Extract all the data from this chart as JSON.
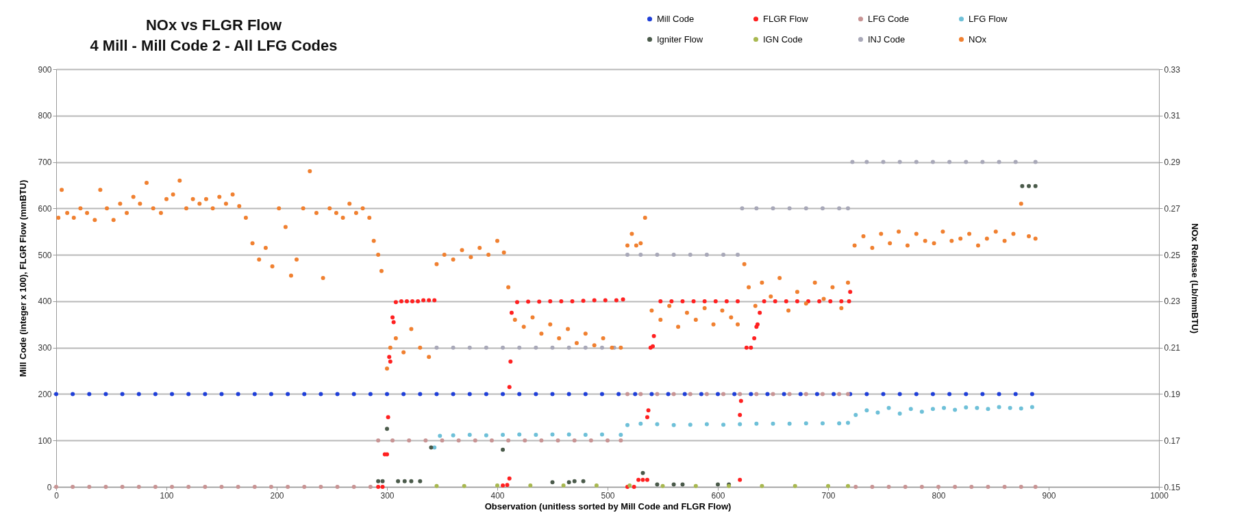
{
  "chart_data": {
    "type": "scatter",
    "title": "NOx vs FLGR Flow",
    "subtitle": "4 Mill - Mill Code 2 - All LFG Codes",
    "xlabel": "Observation (unitless sorted by Mill Code and FLGR Flow)",
    "ylabel": "Mill Code (integer x 100), FLGR Flow (mmBTU)",
    "y2label": "NOx Release (Lb/mmBTU)",
    "xlim": [
      0,
      1000
    ],
    "xticks": [
      0,
      100,
      200,
      300,
      400,
      500,
      600,
      700,
      800,
      900,
      1000
    ],
    "ylim": [
      0,
      900
    ],
    "yticks": [
      0,
      100,
      200,
      300,
      400,
      500,
      600,
      700,
      800,
      900
    ],
    "y2lim": [
      0.15,
      0.33
    ],
    "y2ticks": [
      0.15,
      0.17,
      0.19,
      0.21,
      0.23,
      0.25,
      0.27,
      0.29,
      0.31,
      0.33
    ],
    "grid": "y",
    "legend": "top",
    "marker": "circle",
    "series": [
      {
        "name": "Mill Code",
        "color": "#1f3fd8",
        "x": [
          0,
          15,
          30,
          45,
          60,
          75,
          90,
          105,
          120,
          135,
          150,
          165,
          180,
          195,
          210,
          225,
          240,
          255,
          270,
          285,
          300,
          315,
          330,
          345,
          360,
          375,
          390,
          405,
          420,
          435,
          450,
          465,
          480,
          495,
          510,
          525,
          540,
          555,
          570,
          585,
          600,
          615,
          630,
          645,
          660,
          675,
          690,
          705,
          720,
          735,
          750,
          765,
          780,
          795,
          810,
          825,
          840,
          855,
          870,
          885
        ],
        "values": [
          200,
          200,
          200,
          200,
          200,
          200,
          200,
          200,
          200,
          200,
          200,
          200,
          200,
          200,
          200,
          200,
          200,
          200,
          200,
          200,
          200,
          200,
          200,
          200,
          200,
          200,
          200,
          200,
          200,
          200,
          200,
          200,
          200,
          200,
          200,
          200,
          200,
          200,
          200,
          200,
          200,
          200,
          200,
          200,
          200,
          200,
          200,
          200,
          200,
          200,
          200,
          200,
          200,
          200,
          200,
          200,
          200,
          200,
          200,
          200
        ]
      },
      {
        "name": "FLGR Flow",
        "color": "#ff2020",
        "x": [
          292,
          296,
          298,
          300,
          301,
          302,
          303,
          305,
          306,
          308,
          313,
          318,
          323,
          328,
          333,
          338,
          343,
          405,
          409,
          411,
          411,
          412,
          413,
          418,
          428,
          438,
          448,
          458,
          468,
          478,
          488,
          498,
          508,
          514,
          518,
          524,
          528,
          532,
          536,
          536,
          537,
          539,
          541,
          542,
          548,
          558,
          568,
          578,
          588,
          598,
          608,
          618,
          620,
          620,
          621,
          626,
          630,
          633,
          635,
          636,
          638,
          642,
          652,
          662,
          672,
          682,
          692,
          702,
          712,
          719,
          720
        ],
        "values": [
          0,
          0,
          70,
          70,
          150,
          280,
          270,
          365,
          355,
          398,
          400,
          400,
          400,
          400,
          402,
          402,
          402,
          3,
          4,
          18,
          215,
          270,
          375,
          398,
          399,
          399,
          400,
          400,
          400,
          401,
          402,
          402,
          402,
          404,
          0,
          0,
          15,
          15,
          15,
          150,
          165,
          300,
          303,
          325,
          400,
          400,
          400,
          400,
          400,
          400,
          400,
          400,
          15,
          155,
          185,
          300,
          300,
          320,
          345,
          350,
          375,
          400,
          400,
          400,
          400,
          400,
          400,
          400,
          400,
          400,
          420
        ]
      },
      {
        "name": "LFG Code",
        "color": "#c89494",
        "x": [
          0,
          15,
          30,
          45,
          60,
          75,
          90,
          105,
          120,
          135,
          150,
          165,
          180,
          195,
          210,
          225,
          240,
          255,
          270,
          285,
          292,
          305,
          320,
          335,
          350,
          365,
          380,
          395,
          410,
          425,
          440,
          455,
          470,
          485,
          500,
          512,
          518,
          530,
          545,
          560,
          575,
          590,
          605,
          620,
          635,
          650,
          665,
          680,
          695,
          710,
          718,
          725,
          740,
          755,
          770,
          785,
          800,
          815,
          830,
          845,
          860,
          875,
          888
        ],
        "values": [
          0,
          0,
          0,
          0,
          0,
          0,
          0,
          0,
          0,
          0,
          0,
          0,
          0,
          0,
          0,
          0,
          0,
          0,
          0,
          0,
          100,
          100,
          100,
          100,
          100,
          100,
          100,
          100,
          100,
          100,
          100,
          100,
          100,
          100,
          100,
          100,
          200,
          200,
          200,
          200,
          200,
          200,
          200,
          200,
          200,
          200,
          200,
          200,
          200,
          200,
          200,
          0,
          0,
          0,
          0,
          0,
          0,
          0,
          0,
          0,
          0,
          0,
          0
        ]
      },
      {
        "name": "LFG Flow",
        "color": "#6ec0d8",
        "x": [
          343,
          348,
          360,
          375,
          390,
          405,
          420,
          435,
          450,
          465,
          480,
          495,
          512,
          518,
          530,
          545,
          560,
          575,
          590,
          605,
          620,
          635,
          650,
          665,
          680,
          695,
          710,
          718,
          725,
          735,
          745,
          755,
          765,
          775,
          785,
          795,
          805,
          815,
          825,
          835,
          845,
          855,
          865,
          875,
          885
        ],
        "values": [
          85,
          110,
          111,
          112,
          111,
          112,
          113,
          112,
          113,
          113,
          112,
          113,
          112,
          133,
          136,
          135,
          133,
          134,
          135,
          134,
          135,
          136,
          136,
          136,
          137,
          137,
          137,
          138,
          155,
          165,
          160,
          170,
          158,
          168,
          162,
          168,
          170,
          166,
          171,
          170,
          168,
          172,
          170,
          169,
          172
        ]
      },
      {
        "name": "Igniter Flow",
        "color": "#4a5a4a",
        "x": [
          292,
          296,
          300,
          310,
          316,
          322,
          330,
          340,
          405,
          450,
          465,
          470,
          478,
          532,
          545,
          560,
          568,
          600,
          610,
          876,
          882,
          888
        ],
        "values": [
          12,
          12,
          125,
          12,
          12,
          12,
          12,
          85,
          80,
          10,
          10,
          12,
          12,
          30,
          5,
          5,
          5,
          5,
          5,
          648,
          648,
          648
        ]
      },
      {
        "name": "IGN Code",
        "color": "#a8b850",
        "x": [
          345,
          370,
          400,
          430,
          460,
          490,
          520,
          550,
          580,
          610,
          640,
          670,
          700,
          718
        ],
        "values": [
          2,
          2,
          3,
          3,
          3,
          3,
          3,
          2,
          2,
          2,
          2,
          2,
          2,
          2
        ]
      },
      {
        "name": "INJ Code",
        "color": "#a8a8b8",
        "x": [
          345,
          360,
          375,
          390,
          405,
          420,
          435,
          450,
          465,
          480,
          495,
          506,
          518,
          530,
          545,
          560,
          575,
          590,
          605,
          618,
          622,
          635,
          650,
          665,
          680,
          695,
          710,
          718,
          722,
          735,
          750,
          765,
          780,
          795,
          810,
          825,
          840,
          855,
          870,
          888
        ],
        "values": [
          300,
          300,
          300,
          300,
          300,
          300,
          300,
          300,
          300,
          300,
          300,
          300,
          500,
          500,
          500,
          500,
          500,
          500,
          500,
          500,
          600,
          600,
          600,
          600,
          600,
          600,
          600,
          600,
          700,
          700,
          700,
          700,
          700,
          700,
          700,
          700,
          700,
          700,
          700,
          700
        ]
      },
      {
        "name": "NOx",
        "color": "#f08030",
        "axis": "y2",
        "x": [
          2,
          5,
          10,
          16,
          22,
          28,
          35,
          40,
          46,
          52,
          58,
          64,
          70,
          76,
          82,
          88,
          95,
          100,
          106,
          112,
          118,
          124,
          130,
          136,
          142,
          148,
          154,
          160,
          166,
          172,
          178,
          184,
          190,
          196,
          202,
          208,
          213,
          218,
          224,
          230,
          236,
          242,
          248,
          254,
          260,
          266,
          272,
          278,
          284,
          288,
          292,
          295,
          300,
          303,
          308,
          315,
          322,
          330,
          338,
          345,
          352,
          360,
          368,
          376,
          384,
          392,
          400,
          406,
          410,
          416,
          424,
          432,
          440,
          448,
          456,
          464,
          472,
          480,
          488,
          496,
          504,
          512,
          518,
          522,
          526,
          530,
          534,
          540,
          548,
          556,
          564,
          572,
          580,
          588,
          596,
          604,
          612,
          618,
          624,
          628,
          634,
          640,
          648,
          656,
          664,
          672,
          680,
          688,
          696,
          704,
          712,
          718,
          724,
          732,
          740,
          748,
          756,
          764,
          772,
          780,
          788,
          796,
          804,
          812,
          820,
          828,
          836,
          844,
          852,
          860,
          868,
          875,
          882,
          888
        ],
        "values": [
          0.266,
          0.278,
          0.268,
          0.266,
          0.27,
          0.268,
          0.265,
          0.278,
          0.27,
          0.265,
          0.272,
          0.268,
          0.275,
          0.272,
          0.281,
          0.27,
          0.268,
          0.274,
          0.276,
          0.282,
          0.27,
          0.274,
          0.272,
          0.274,
          0.27,
          0.275,
          0.272,
          0.276,
          0.271,
          0.266,
          0.255,
          0.248,
          0.253,
          0.245,
          0.27,
          0.262,
          0.241,
          0.248,
          0.27,
          0.286,
          0.268,
          0.24,
          0.27,
          0.268,
          0.266,
          0.272,
          0.268,
          0.27,
          0.266,
          0.256,
          0.25,
          0.243,
          0.201,
          0.21,
          0.214,
          0.208,
          0.218,
          0.21,
          0.206,
          0.246,
          0.25,
          0.248,
          0.252,
          0.249,
          0.253,
          0.25,
          0.256,
          0.251,
          0.236,
          0.222,
          0.219,
          0.223,
          0.216,
          0.22,
          0.214,
          0.218,
          0.212,
          0.216,
          0.211,
          0.214,
          0.21,
          0.21,
          0.254,
          0.259,
          0.254,
          0.255,
          0.266,
          0.226,
          0.222,
          0.228,
          0.219,
          0.225,
          0.222,
          0.227,
          0.22,
          0.226,
          0.223,
          0.22,
          0.246,
          0.236,
          0.228,
          0.238,
          0.232,
          0.24,
          0.226,
          0.234,
          0.229,
          0.238,
          0.231,
          0.236,
          0.227,
          0.238,
          0.254,
          0.258,
          0.253,
          0.259,
          0.255,
          0.26,
          0.254,
          0.259,
          0.256,
          0.255,
          0.26,
          0.256,
          0.257,
          0.259,
          0.254,
          0.257,
          0.26,
          0.256,
          0.259,
          0.272,
          0.258,
          0.257
        ]
      }
    ]
  }
}
